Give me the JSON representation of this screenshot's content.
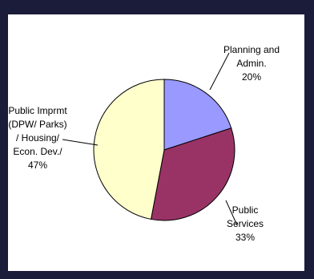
{
  "chart_data": {
    "type": "pie",
    "title": "",
    "slices": [
      {
        "label_lines": [
          "Planning and",
          "Admin.",
          "20%"
        ],
        "value": 20,
        "color": "#9999ff"
      },
      {
        "label_lines": [
          "Public",
          "Services",
          "33%"
        ],
        "value": 33,
        "color": "#993366"
      },
      {
        "label_lines": [
          "Public Imprmt",
          "(DPW/ Parks)",
          "/ Housing/",
          "Econ. Dev./",
          "47%"
        ],
        "value": 47,
        "color": "#ffffcc"
      }
    ]
  }
}
